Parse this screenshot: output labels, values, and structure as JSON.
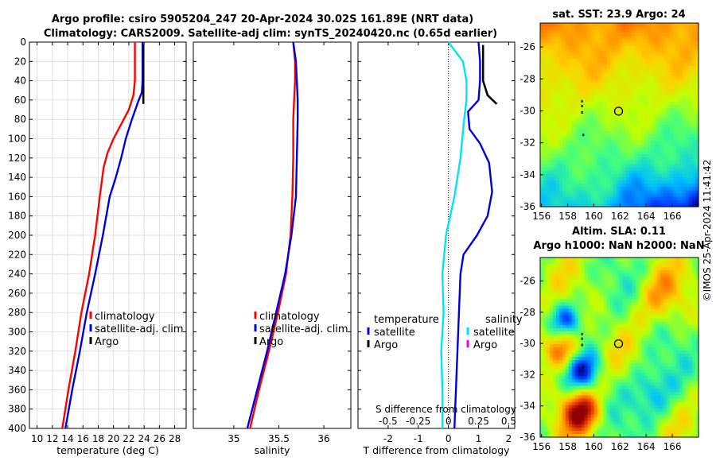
{
  "header": {
    "title_line1": "Argo profile: csiro 5905204_247 20-Apr-2024 30.02S 161.89E (NRT data)",
    "title_line2": "Climatology: CARS2009. Satellite-adj clim: synTS_20240420.nc (0.65d earlier)"
  },
  "colors": {
    "climatology": "#ff0000",
    "satellite": "#0000dd",
    "argo": "#000000",
    "sal_satellite": "#00e5ee",
    "sal_argo": "#ff00cc",
    "grid": "#d9d9d9"
  },
  "yaxis": {
    "ticks": [
      "0",
      "20",
      "40",
      "60",
      "80",
      "100",
      "120",
      "140",
      "160",
      "180",
      "200",
      "220",
      "240",
      "260",
      "280",
      "300",
      "320",
      "340",
      "360",
      "380",
      "400"
    ],
    "range": [
      0,
      400
    ]
  },
  "chart_data": [
    {
      "id": "temperature",
      "type": "line",
      "xlabel": "temperature (deg C)",
      "xlim": [
        9,
        29.5
      ],
      "ylim": [
        0,
        400
      ],
      "xticks": [
        10,
        12,
        14,
        16,
        18,
        20,
        22,
        24,
        26,
        28
      ],
      "xtick_labels": [
        "10",
        "12",
        "14",
        "16",
        "18",
        "20",
        "22",
        "24",
        "26",
        "28"
      ],
      "legend": {
        "placement": "lower-right",
        "entries": [
          "climatology",
          "satellite-adj. clim",
          "Argo"
        ]
      },
      "series": [
        {
          "name": "climatology",
          "color_key": "climatology",
          "points": [
            [
              22.8,
              0
            ],
            [
              22.8,
              20
            ],
            [
              22.8,
              40
            ],
            [
              22.6,
              55
            ],
            [
              22,
              70
            ],
            [
              21,
              85
            ],
            [
              20,
              100
            ],
            [
              19.2,
              115
            ],
            [
              18.7,
              130
            ],
            [
              18.2,
              160
            ],
            [
              17.6,
              200
            ],
            [
              16.8,
              240
            ],
            [
              15.8,
              280
            ],
            [
              15,
              320
            ],
            [
              14.1,
              360
            ],
            [
              13.3,
              400
            ]
          ]
        },
        {
          "name": "satellite-adj. clim",
          "color_key": "satellite",
          "points": [
            [
              23.8,
              0
            ],
            [
              23.8,
              20
            ],
            [
              23.8,
              40
            ],
            [
              23.7,
              52
            ],
            [
              23.2,
              62
            ],
            [
              22.4,
              80
            ],
            [
              21.6,
              100
            ],
            [
              21,
              120
            ],
            [
              20.3,
              140
            ],
            [
              19.5,
              160
            ],
            [
              18.6,
              200
            ],
            [
              17.6,
              240
            ],
            [
              16.5,
              280
            ],
            [
              15.6,
              320
            ],
            [
              14.6,
              360
            ],
            [
              13.7,
              400
            ]
          ]
        },
        {
          "name": "Argo",
          "color_key": "argo",
          "points": [
            [
              23.9,
              3
            ],
            [
              23.9,
              20
            ],
            [
              23.9,
              40
            ],
            [
              23.9,
              55
            ],
            [
              23.9,
              64
            ]
          ]
        }
      ]
    },
    {
      "id": "salinity",
      "type": "line",
      "xlabel": "salinity",
      "xlim": [
        34.55,
        36.3
      ],
      "ylim": [
        0,
        400
      ],
      "xticks": [
        35,
        35.5,
        36
      ],
      "xtick_labels": [
        "35",
        "35.5",
        "36"
      ],
      "legend": {
        "placement": "lower-right",
        "entries": [
          "climatology",
          "satellite-adj. clim",
          "Argo"
        ]
      },
      "series": [
        {
          "name": "climatology",
          "color_key": "climatology",
          "points": [
            [
              35.66,
              0
            ],
            [
              35.68,
              20
            ],
            [
              35.68,
              40
            ],
            [
              35.67,
              60
            ],
            [
              35.66,
              80
            ],
            [
              35.66,
              120
            ],
            [
              35.65,
              160
            ],
            [
              35.63,
              200
            ],
            [
              35.58,
              240
            ],
            [
              35.49,
              280
            ],
            [
              35.39,
              320
            ],
            [
              35.28,
              360
            ],
            [
              35.18,
              400
            ]
          ]
        },
        {
          "name": "satellite-adj. clim",
          "color_key": "satellite",
          "points": [
            [
              35.66,
              0
            ],
            [
              35.69,
              20
            ],
            [
              35.7,
              40
            ],
            [
              35.71,
              60
            ],
            [
              35.71,
              80
            ],
            [
              35.7,
              120
            ],
            [
              35.69,
              160
            ],
            [
              35.64,
              200
            ],
            [
              35.57,
              240
            ],
            [
              35.47,
              280
            ],
            [
              35.37,
              320
            ],
            [
              35.26,
              360
            ],
            [
              35.15,
              400
            ]
          ]
        },
        {
          "name": "Argo",
          "color_key": "argo",
          "points": []
        }
      ]
    },
    {
      "id": "difference",
      "type": "line",
      "xlabel": "T difference from climatology",
      "top_axis_label": "S difference from climatology",
      "xlim": [
        -3,
        2.2
      ],
      "ylim": [
        0,
        400
      ],
      "xticks": [
        -2,
        -1,
        0,
        1,
        2
      ],
      "xtick_labels": [
        "-2",
        "-1",
        "0",
        "1",
        "2"
      ],
      "s_axis": {
        "scale": 4,
        "ticks": [
          -0.5,
          -0.25,
          0,
          0.25,
          0.5
        ],
        "tick_labels": [
          "-0.5",
          "-0.25",
          "0",
          "0.25",
          "0.5"
        ]
      },
      "legend": {
        "placement": "lower-middle",
        "temperature_heading": "temperature",
        "salinity_heading": "salinity",
        "temperature_entries": [
          "satellite",
          "Argo"
        ],
        "salinity_entries": [
          "satellite",
          "Argo"
        ]
      },
      "series": [
        {
          "name": "temperature satellite",
          "color_key": "satellite",
          "points": [
            [
              1,
              0
            ],
            [
              1.05,
              20
            ],
            [
              1.05,
              40
            ],
            [
              1,
              60
            ],
            [
              0.65,
              72
            ],
            [
              0.7,
              90
            ],
            [
              1.05,
              105
            ],
            [
              1.35,
              125
            ],
            [
              1.45,
              155
            ],
            [
              1.3,
              180
            ],
            [
              0.95,
              200
            ],
            [
              0.5,
              220
            ],
            [
              0.4,
              240
            ],
            [
              0.35,
              280
            ],
            [
              0.3,
              320
            ],
            [
              0.25,
              360
            ],
            [
              0.2,
              400
            ]
          ]
        },
        {
          "name": "temperature Argo",
          "color_key": "argo",
          "points": [
            [
              1.15,
              3
            ],
            [
              1.15,
              20
            ],
            [
              1.15,
              40
            ],
            [
              1.3,
              55
            ],
            [
              1.6,
              64
            ]
          ]
        },
        {
          "name": "salinity satellite",
          "color_key": "sal_satellite",
          "points": [
            [
              0,
              0
            ],
            [
              0.12,
              20
            ],
            [
              0.15,
              40
            ],
            [
              0.15,
              60
            ],
            [
              0.13,
              80
            ],
            [
              0.1,
              120
            ],
            [
              0.05,
              160
            ],
            [
              -0.02,
              200
            ],
            [
              -0.05,
              240
            ],
            [
              -0.04,
              280
            ],
            [
              -0.06,
              320
            ],
            [
              -0.05,
              360
            ],
            [
              -0.05,
              400
            ]
          ]
        },
        {
          "name": "salinity Argo",
          "color_key": "sal_argo",
          "points": []
        }
      ]
    },
    {
      "id": "sst_map",
      "type": "heatmap",
      "title": "sat. SST: 23.9 Argo: 24",
      "xlim": [
        155.9,
        168
      ],
      "ylim": [
        -36,
        -24.5
      ],
      "xticks": [
        156,
        158,
        160,
        162,
        164,
        166
      ],
      "xtick_labels": [
        "156",
        "158",
        "160",
        "162",
        "164",
        "166"
      ],
      "yticks": [
        -26,
        -28,
        -30,
        -32,
        -34,
        -36
      ],
      "ytick_labels": [
        "-26",
        "-28",
        "-30",
        "-32",
        "-34",
        "-36"
      ],
      "float_position": [
        161.89,
        -30.02
      ],
      "track": [
        [
          159.1,
          -29.4
        ],
        [
          159.1,
          -29.7
        ],
        [
          159.1,
          -30.1
        ],
        [
          159.2,
          -31.5
        ]
      ],
      "color_stops": [
        "#00008f",
        "#0040ff",
        "#00c0ff",
        "#40ff80",
        "#c0ff00",
        "#ffd000",
        "#ff8000",
        "#e03000",
        "#900000"
      ]
    },
    {
      "id": "sla_map",
      "type": "heatmap",
      "title_line1": "Altim. SLA: 0.11",
      "title_line2": "Argo h1000: NaN h2000: NaN",
      "xlim": [
        155.9,
        168
      ],
      "ylim": [
        -36,
        -24.5
      ],
      "xticks": [
        156,
        158,
        160,
        162,
        164,
        166
      ],
      "xtick_labels": [
        "156",
        "158",
        "160",
        "162",
        "164",
        "166"
      ],
      "yticks": [
        -26,
        -28,
        -30,
        -32,
        -34,
        -36
      ],
      "ytick_labels": [
        "-26",
        "-28",
        "-30",
        "-32",
        "-34",
        "-36"
      ],
      "float_position": [
        161.89,
        -30.02
      ],
      "track": [
        [
          159.1,
          -29.4
        ],
        [
          159.1,
          -29.7
        ],
        [
          159.1,
          -30.1
        ],
        [
          159.2,
          -31.5
        ]
      ],
      "color_stops": [
        "#00008f",
        "#0040ff",
        "#00c0ff",
        "#40ff80",
        "#c0ff00",
        "#ffd000",
        "#ff8000",
        "#e03000",
        "#900000"
      ]
    }
  ],
  "stamp": "©IMOS 25-Apr-2024 11:41:42"
}
